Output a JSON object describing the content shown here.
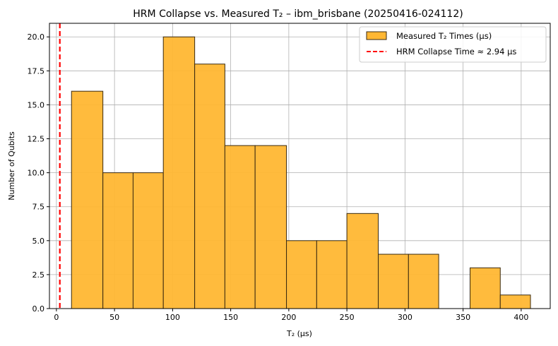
{
  "chart_data": {
    "type": "bar",
    "title": "HRM Collapse vs. Measured T₂ – ibm_brisbane (20250416-024112)",
    "xlabel": "T₂ (μs)",
    "ylabel": "Number of Qubits",
    "xlim": [
      -6,
      425
    ],
    "ylim": [
      0,
      21
    ],
    "xticks": [
      0,
      50,
      100,
      150,
      200,
      250,
      300,
      350,
      400
    ],
    "yticks": [
      0.0,
      2.5,
      5.0,
      7.5,
      10.0,
      12.5,
      15.0,
      17.5,
      20.0
    ],
    "xtick_labels": [
      "0",
      "50",
      "100",
      "150",
      "200",
      "250",
      "300",
      "350",
      "400"
    ],
    "ytick_labels": [
      "0.0",
      "2.5",
      "5.0",
      "7.5",
      "10.0",
      "12.5",
      "15.0",
      "17.5",
      "20.0"
    ],
    "grid": true,
    "legend_position": "top-right",
    "bins": [
      {
        "start": 13,
        "end": 40,
        "count": 16
      },
      {
        "start": 40,
        "end": 66,
        "count": 10
      },
      {
        "start": 66,
        "end": 92,
        "count": 10
      },
      {
        "start": 92,
        "end": 119,
        "count": 20
      },
      {
        "start": 119,
        "end": 145,
        "count": 18
      },
      {
        "start": 145,
        "end": 171,
        "count": 12
      },
      {
        "start": 171,
        "end": 198,
        "count": 12
      },
      {
        "start": 198,
        "end": 224,
        "count": 5
      },
      {
        "start": 224,
        "end": 250,
        "count": 5
      },
      {
        "start": 250,
        "end": 277,
        "count": 7
      },
      {
        "start": 277,
        "end": 303,
        "count": 4
      },
      {
        "start": 303,
        "end": 329,
        "count": 4
      },
      {
        "start": 329,
        "end": 356,
        "count": 0
      },
      {
        "start": 356,
        "end": 382,
        "count": 3
      },
      {
        "start": 382,
        "end": 408,
        "count": 1
      }
    ],
    "reference_line": {
      "x": 2.94
    },
    "series": [
      {
        "name": "Measured T₂ Times (μs)",
        "color": "#ffb733",
        "edge_color": "#3a2a10"
      },
      {
        "name": "HRM Collapse Time ≈ 2.94 μs",
        "color": "#ff0000"
      }
    ]
  }
}
